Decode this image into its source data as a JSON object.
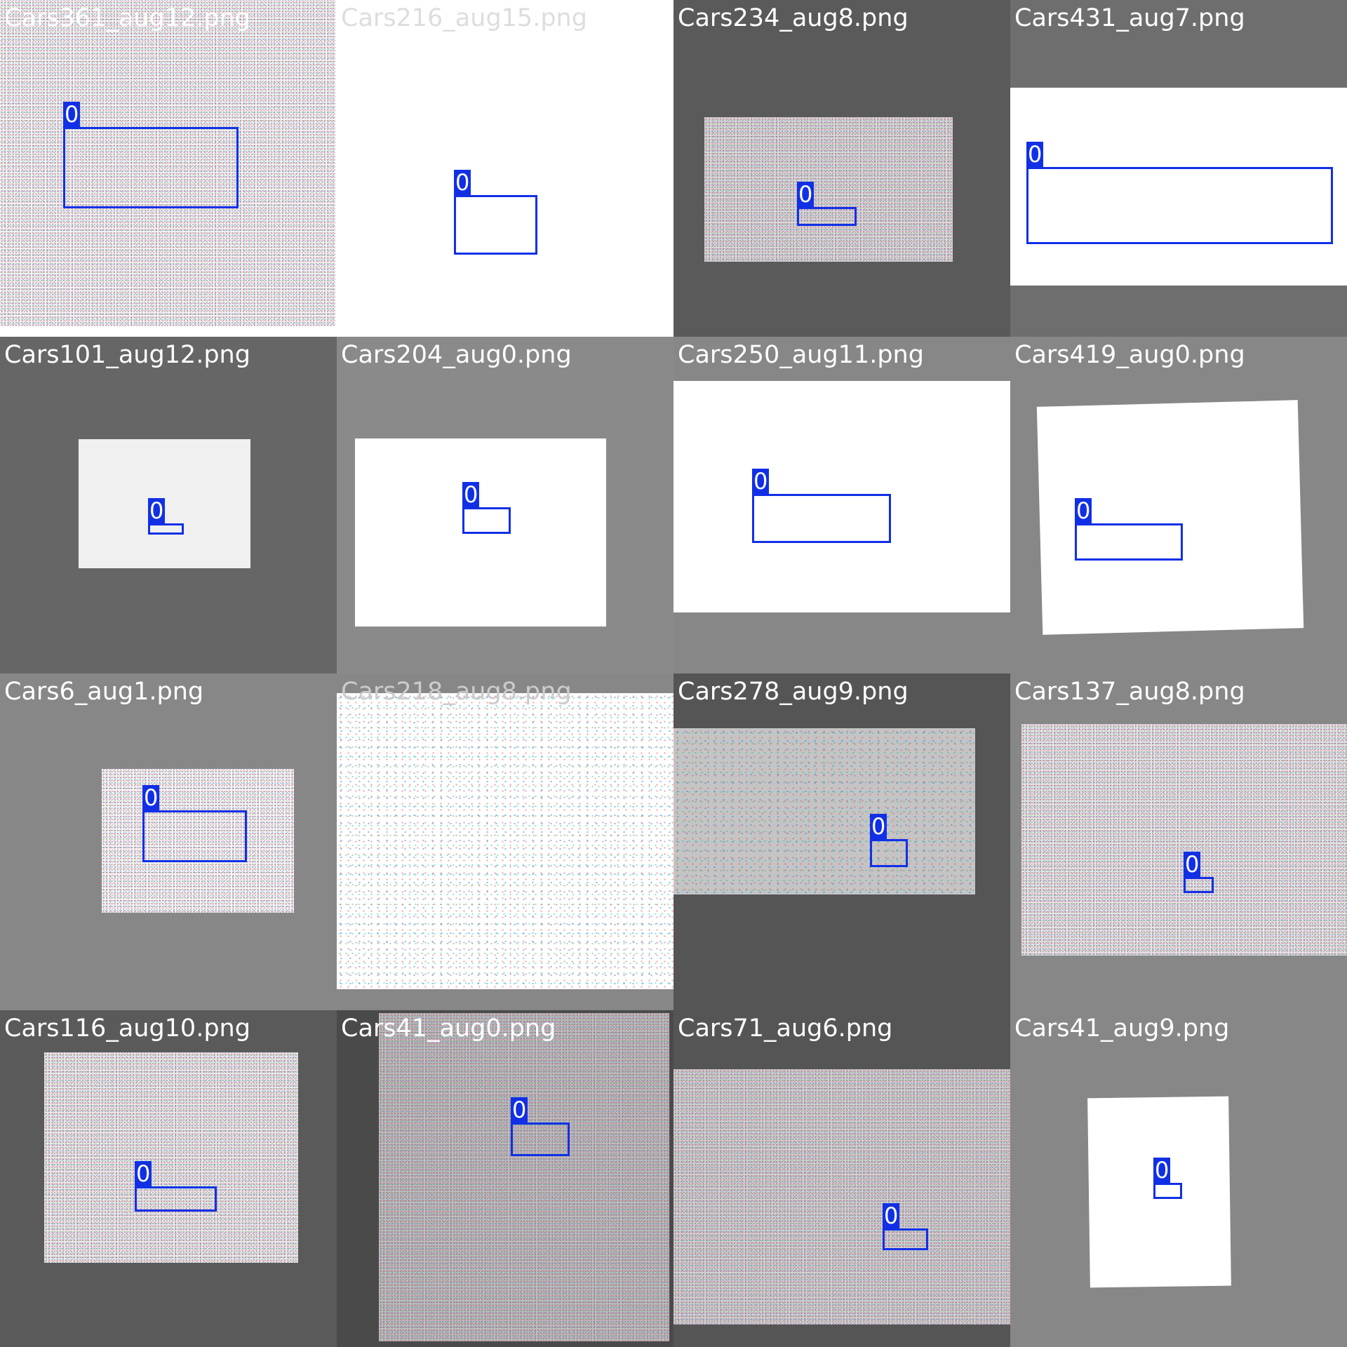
{
  "grid": {
    "background_color": "#ffffff",
    "box_color": "#1130e6",
    "label_text_color": "#ffffff",
    "filename_color": "#ffffff"
  },
  "tiles": [
    {
      "filename": "Cars361_aug12.png",
      "background": "#ffffff",
      "detections": [
        {
          "class_label": "0"
        }
      ]
    },
    {
      "filename": "Cars216_aug15.png",
      "background": "#ffffff",
      "detections": [
        {
          "class_label": "0"
        }
      ]
    },
    {
      "filename": "Cars234_aug8.png",
      "background": "#5a5a5a",
      "detections": [
        {
          "class_label": "0"
        }
      ]
    },
    {
      "filename": "Cars431_aug7.png",
      "background": "#6e6e6e",
      "detections": [
        {
          "class_label": "0"
        }
      ]
    },
    {
      "filename": "Cars101_aug12.png",
      "background": "#666666",
      "detections": [
        {
          "class_label": "0"
        }
      ]
    },
    {
      "filename": "Cars204_aug0.png",
      "background": "#8a8a8a",
      "detections": [
        {
          "class_label": "0"
        }
      ]
    },
    {
      "filename": "Cars250_aug11.png",
      "background": "#878787",
      "detections": [
        {
          "class_label": "0"
        }
      ]
    },
    {
      "filename": "Cars419_aug0.png",
      "background": "#878787",
      "detections": [
        {
          "class_label": "0"
        }
      ]
    },
    {
      "filename": "Cars6_aug1.png",
      "background": "#878787",
      "detections": [
        {
          "class_label": "0"
        }
      ]
    },
    {
      "filename": "Cars218_aug8.png",
      "background": "#ffffff",
      "detections": []
    },
    {
      "filename": "Cars278_aug9.png",
      "background": "#555555",
      "detections": [
        {
          "class_label": "0"
        }
      ]
    },
    {
      "filename": "Cars137_aug8.png",
      "background": "#878787",
      "detections": [
        {
          "class_label": "0"
        }
      ]
    },
    {
      "filename": "Cars116_aug10.png",
      "background": "#5a5a5a",
      "detections": [
        {
          "class_label": "0"
        }
      ]
    },
    {
      "filename": "Cars41_aug0.png",
      "background": "#4a4a4a",
      "detections": [
        {
          "class_label": "0"
        }
      ]
    },
    {
      "filename": "Cars71_aug6.png",
      "background": "#555555",
      "detections": [
        {
          "class_label": "0"
        }
      ]
    },
    {
      "filename": "Cars41_aug9.png",
      "background": "#878787",
      "detections": [
        {
          "class_label": "0"
        }
      ]
    }
  ]
}
